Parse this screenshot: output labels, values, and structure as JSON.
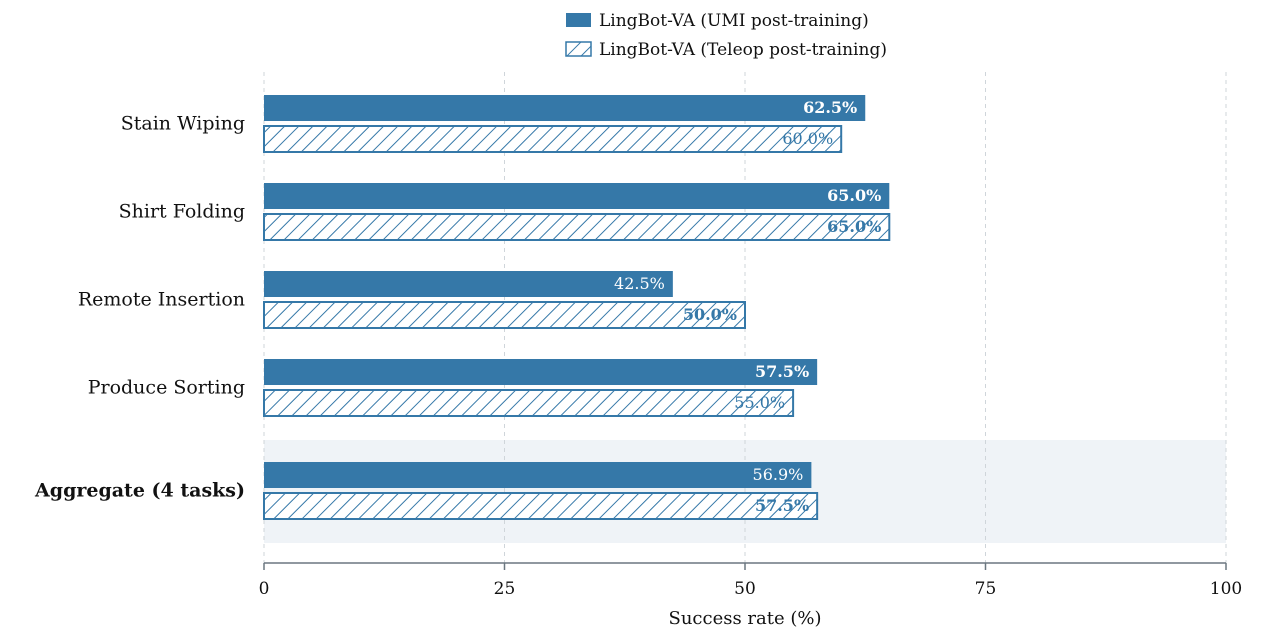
{
  "chart_data": {
    "type": "bar",
    "orientation": "horizontal",
    "title": "",
    "xlabel": "Success rate (%)",
    "ylabel": "",
    "xlim": [
      0,
      100
    ],
    "xticks": [
      0,
      25,
      50,
      75,
      100
    ],
    "grid": "x-dashed",
    "legend_position": "top-center",
    "categories": [
      "Stain Wiping",
      "Shirt Folding",
      "Remote Insertion",
      "Produce Sorting",
      "Aggregate (4 tasks)"
    ],
    "highlighted_category": "Aggregate (4 tasks)",
    "series": [
      {
        "name": "LingBot-VA (UMI post-training)",
        "style": "solid",
        "color": "#3578a8",
        "values": [
          62.5,
          65.0,
          42.5,
          57.5,
          56.9
        ],
        "labels": [
          "62.5%",
          "65.0%",
          "42.5%",
          "57.5%",
          "56.9%"
        ],
        "label_bold": [
          true,
          true,
          false,
          true,
          false
        ]
      },
      {
        "name": "LingBot-VA (Teleop post-training)",
        "style": "hatched",
        "color": "#3578a8",
        "values": [
          60.0,
          65.0,
          50.0,
          55.0,
          57.5
        ],
        "labels": [
          "60.0%",
          "65.0%",
          "50.0%",
          "55.0%",
          "57.5%"
        ],
        "label_bold": [
          false,
          true,
          true,
          false,
          true
        ]
      }
    ]
  }
}
